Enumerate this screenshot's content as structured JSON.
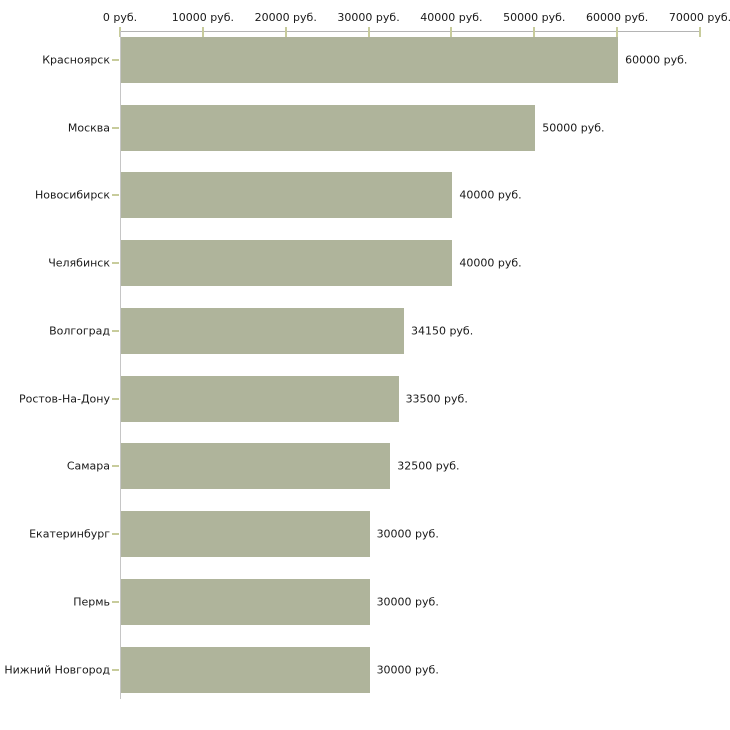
{
  "chart_data": {
    "type": "bar",
    "orientation": "horizontal",
    "title": "",
    "xlabel": "",
    "ylabel": "",
    "xlim": [
      0,
      70000
    ],
    "x_tick_interval": 10000,
    "grid": false,
    "legend": false,
    "x_ticks": [
      "0 руб.",
      "10000 руб.",
      "20000 руб.",
      "30000 руб.",
      "40000 руб.",
      "50000 руб.",
      "60000 руб.",
      "70000 руб."
    ],
    "x_tick_values": [
      0,
      10000,
      20000,
      30000,
      40000,
      50000,
      60000,
      70000
    ],
    "categories": [
      "Красноярск",
      "Москва",
      "Новосибирск",
      "Челябинск",
      "Волгоград",
      "Ростов-На-Дону",
      "Самара",
      "Екатеринбург",
      "Пермь",
      "Нижний Новгород"
    ],
    "values": [
      60000,
      50000,
      40000,
      40000,
      34150,
      33500,
      32500,
      30000,
      30000,
      30000
    ],
    "value_labels": [
      "60000 руб.",
      "50000 руб.",
      "40000 руб.",
      "40000 руб.",
      "34150 руб.",
      "33500 руб.",
      "32500 руб.",
      "30000 руб.",
      "30000 руб.",
      "30000 руб."
    ],
    "colors": {
      "bar": "#afb49b",
      "tick_mark": "#c8cc9c",
      "axis_line_horizontal": "#b4b4b4",
      "axis_line_vertical": "#c6c6c6",
      "text": "#1a1a1a",
      "background": "#ffffff"
    }
  }
}
